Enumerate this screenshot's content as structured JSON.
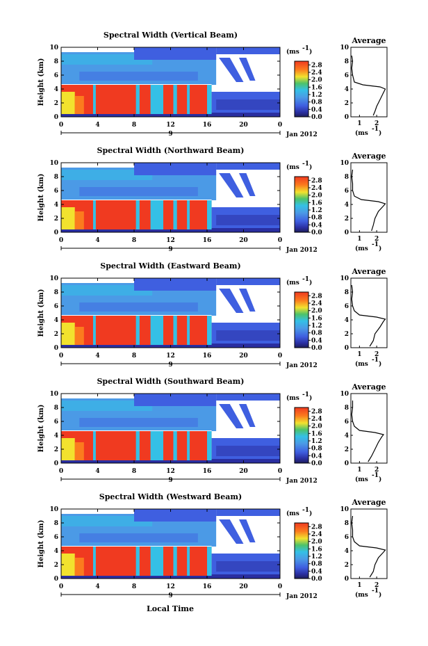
{
  "date_label": "Jan 2012",
  "xlabel": "Local Time",
  "ylabel": "Height (km)",
  "unit_label": "(ms",
  "unit_exp": "-1",
  "avg_title": "Average",
  "avg_xlabel": "(ms",
  "day_label": "9",
  "colors": {
    "red": "#f03a20",
    "orange": "#fb7b1e",
    "yellow": "#f2e22e",
    "green": "#4cc26a",
    "cyan": "#34c0e6",
    "lightblue": "#4b9ae6",
    "blue": "#3f5fe0",
    "darkblue": "#2a2ea0",
    "navy": "#1e1e5a"
  },
  "chart_data": [
    {
      "type": "heatmap",
      "title": "Spectral Width (Vertical Beam)",
      "xlabel": "",
      "ylabel": "Height (km)",
      "xlim": [
        0,
        24
      ],
      "ylim": [
        0,
        10
      ],
      "xticks": [
        "0",
        "4",
        "8",
        "12",
        "16",
        "20",
        "0"
      ],
      "yticks": [
        "0",
        "2",
        "4",
        "6",
        "8",
        "10"
      ],
      "colorbar": {
        "label": "(ms-1)",
        "ticks": [
          "0.0",
          "0.4",
          "0.8",
          "1.2",
          "1.6",
          "2.0",
          "2.4",
          "2.8"
        ],
        "range": [
          0,
          3.0
        ]
      },
      "average": {
        "xticks": [
          "1",
          "2"
        ],
        "xlim": [
          0.5,
          2.6
        ],
        "profile": [
          [
            1.8,
            0.2
          ],
          [
            1.9,
            0.8
          ],
          [
            2.0,
            1.5
          ],
          [
            2.2,
            2.5
          ],
          [
            2.4,
            3.5
          ],
          [
            2.5,
            4.0
          ],
          [
            2.2,
            4.3
          ],
          [
            1.2,
            4.6
          ],
          [
            0.7,
            5.0
          ],
          [
            0.6,
            6.0
          ],
          [
            0.55,
            7.0
          ],
          [
            0.6,
            8.0
          ],
          [
            0.55,
            8.8
          ]
        ]
      }
    },
    {
      "type": "heatmap",
      "title": "Spectral Width (Northward Beam)",
      "xlabel": "",
      "ylabel": "Height (km)",
      "xlim": [
        0,
        24
      ],
      "ylim": [
        0,
        10
      ],
      "xticks": [
        "0",
        "4",
        "8",
        "12",
        "16",
        "20",
        "0"
      ],
      "yticks": [
        "0",
        "2",
        "4",
        "6",
        "8",
        "10"
      ],
      "colorbar": {
        "label": "(ms-1)",
        "ticks": [
          "0.0",
          "0.4",
          "0.8",
          "1.2",
          "1.6",
          "2.0",
          "2.4",
          "2.8"
        ],
        "range": [
          0,
          3.0
        ]
      },
      "average": {
        "xticks": [
          "1",
          "2"
        ],
        "xlim": [
          0.5,
          2.6
        ],
        "profile": [
          [
            1.7,
            0.2
          ],
          [
            1.8,
            1.0
          ],
          [
            1.9,
            2.0
          ],
          [
            2.1,
            3.0
          ],
          [
            2.4,
            3.8
          ],
          [
            2.5,
            4.1
          ],
          [
            2.1,
            4.4
          ],
          [
            1.1,
            4.7
          ],
          [
            0.7,
            5.2
          ],
          [
            0.6,
            6.0
          ],
          [
            0.6,
            7.0
          ],
          [
            0.55,
            8.0
          ],
          [
            0.6,
            9.0
          ]
        ]
      }
    },
    {
      "type": "heatmap",
      "title": "Spectral Width (Eastward Beam)",
      "xlabel": "",
      "ylabel": "Height (km)",
      "xlim": [
        0,
        24
      ],
      "ylim": [
        0,
        10
      ],
      "xticks": [
        "0",
        "4",
        "8",
        "12",
        "16",
        "20",
        "0"
      ],
      "yticks": [
        "0",
        "2",
        "4",
        "6",
        "8",
        "10"
      ],
      "colorbar": {
        "label": "(ms-1)",
        "ticks": [
          "0.0",
          "0.4",
          "0.8",
          "1.2",
          "1.6",
          "2.0",
          "2.4",
          "2.8"
        ],
        "range": [
          0,
          3.0
        ]
      },
      "average": {
        "xticks": [
          "1",
          "2"
        ],
        "xlim": [
          0.5,
          2.6
        ],
        "profile": [
          [
            1.6,
            0.2
          ],
          [
            1.8,
            1.0
          ],
          [
            1.9,
            2.0
          ],
          [
            2.2,
            3.0
          ],
          [
            2.4,
            3.8
          ],
          [
            2.5,
            4.1
          ],
          [
            2.0,
            4.4
          ],
          [
            1.0,
            4.7
          ],
          [
            0.7,
            5.3
          ],
          [
            0.6,
            6.0
          ],
          [
            0.55,
            7.0
          ],
          [
            0.6,
            8.0
          ],
          [
            0.55,
            9.0
          ]
        ]
      }
    },
    {
      "type": "heatmap",
      "title": "Spectral Width (Southward Beam)",
      "xlabel": "",
      "ylabel": "Height (km)",
      "xlim": [
        0,
        24
      ],
      "ylim": [
        0,
        10
      ],
      "xticks": [
        "0",
        "4",
        "8",
        "12",
        "16",
        "20",
        "0"
      ],
      "yticks": [
        "0",
        "2",
        "4",
        "6",
        "8",
        "10"
      ],
      "colorbar": {
        "label": "(ms-1)",
        "ticks": [
          "0.0",
          "0.4",
          "0.8",
          "1.2",
          "1.6",
          "2.0",
          "2.4",
          "2.8"
        ],
        "range": [
          0,
          3.0
        ]
      },
      "average": {
        "xticks": [
          "1",
          "2"
        ],
        "xlim": [
          0.5,
          2.6
        ],
        "profile": [
          [
            1.5,
            0.2
          ],
          [
            1.7,
            1.0
          ],
          [
            1.9,
            2.0
          ],
          [
            2.1,
            3.0
          ],
          [
            2.3,
            3.8
          ],
          [
            2.4,
            4.1
          ],
          [
            1.9,
            4.4
          ],
          [
            1.0,
            4.7
          ],
          [
            0.7,
            5.3
          ],
          [
            0.6,
            6.0
          ],
          [
            0.55,
            7.0
          ],
          [
            0.6,
            8.0
          ],
          [
            0.6,
            9.0
          ]
        ]
      }
    },
    {
      "type": "heatmap",
      "title": "Spectral Width (Westward Beam)",
      "xlabel": "Local Time",
      "ylabel": "Height (km)",
      "xlim": [
        0,
        24
      ],
      "ylim": [
        0,
        10
      ],
      "xticks": [
        "0",
        "4",
        "8",
        "12",
        "16",
        "20",
        "0"
      ],
      "yticks": [
        "0",
        "2",
        "4",
        "6",
        "8",
        "10"
      ],
      "colorbar": {
        "label": "(ms-1)",
        "ticks": [
          "0.0",
          "0.4",
          "0.8",
          "1.2",
          "1.6",
          "2.0",
          "2.4",
          "2.8"
        ],
        "range": [
          0,
          3.0
        ]
      },
      "average": {
        "xticks": [
          "1",
          "2"
        ],
        "xlim": [
          0.5,
          2.6
        ],
        "profile": [
          [
            1.6,
            0.2
          ],
          [
            1.8,
            1.0
          ],
          [
            1.9,
            2.0
          ],
          [
            2.1,
            3.0
          ],
          [
            2.4,
            3.8
          ],
          [
            2.5,
            4.1
          ],
          [
            2.0,
            4.4
          ],
          [
            1.0,
            4.7
          ],
          [
            0.7,
            5.3
          ],
          [
            0.6,
            6.0
          ],
          [
            0.6,
            7.0
          ],
          [
            0.55,
            8.0
          ],
          [
            0.6,
            9.0
          ]
        ]
      }
    }
  ]
}
